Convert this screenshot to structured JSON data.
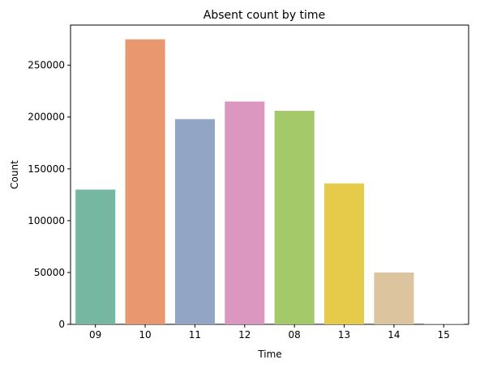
{
  "chart_data": {
    "type": "bar",
    "title": "Absent count by time",
    "xlabel": "Time",
    "ylabel": "Count",
    "categories": [
      "09",
      "10",
      "11",
      "12",
      "08",
      "13",
      "14",
      "15"
    ],
    "values": [
      130000,
      275000,
      198000,
      215000,
      206000,
      136000,
      50000,
      300
    ],
    "ylim": [
      0,
      288750
    ],
    "y_ticks": [
      0,
      50000,
      100000,
      150000,
      200000,
      250000
    ],
    "y_tick_labels": [
      "0",
      "50000",
      "100000",
      "150000",
      "200000",
      "250000"
    ],
    "colors": [
      "#76b7a2",
      "#e9976f",
      "#92a5c5",
      "#dc97c0",
      "#a3c968",
      "#e6cb4a",
      "#dcc49e",
      "#b3b3b3"
    ],
    "grid": false,
    "legend": "none"
  }
}
